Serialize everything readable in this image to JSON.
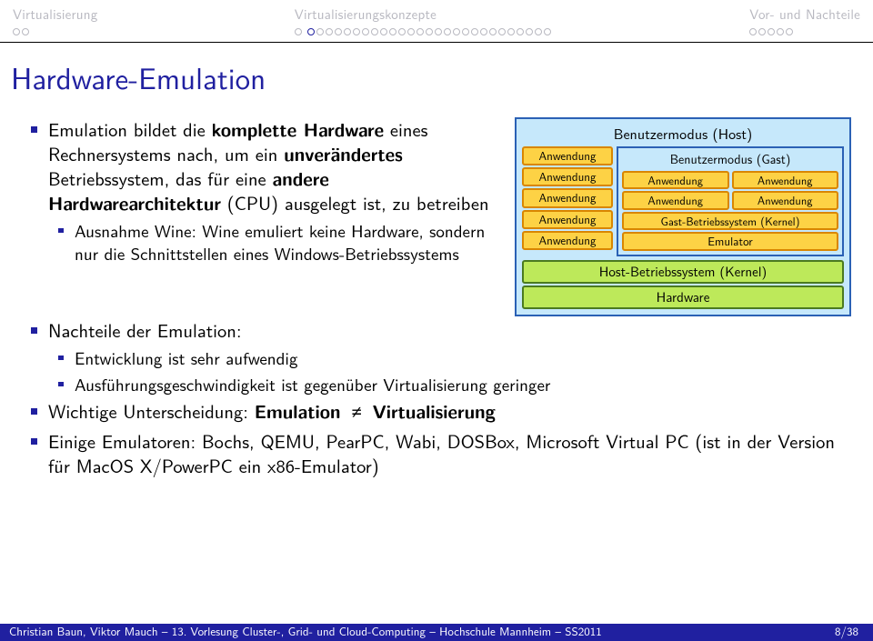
{
  "nav": {
    "sec1": {
      "label": "Virtualisierung",
      "dots": 2,
      "filled": -1
    },
    "sec2": {
      "label": "Virtualisierungskonzepte",
      "dots_groups": [
        1,
        27
      ],
      "active": 1
    },
    "sec3": {
      "label": "Vor- und Nachteile",
      "dots": 5,
      "filled": -1
    }
  },
  "title": "Hardware-Emulation",
  "bullets": {
    "b1a": "Emulation bildet die ",
    "b1b": "komplette Hardware",
    "b1c": " eines Rechnersystems nach, um ein ",
    "b1d": "unverändertes",
    "b1e": " Betriebssystem, das für eine ",
    "b1f": "andere Hardwarearchitektur",
    "b1g": " (CPU) ausgelegt ist, zu betreiben",
    "b1s1": "Ausnahme Wine: Wine emuliert keine Hardware, sondern nur die Schnittstellen eines Windows-Betriebssystems",
    "b2": "Nachteile der Emulation:",
    "b2s1": "Entwicklung ist sehr aufwendig",
    "b2s2": "Ausführungsgeschwindigkeit ist gegenüber Virtualisierung geringer",
    "b3a": "Wichtige Unterscheidung: ",
    "b3b": "Emulation",
    "b3c": "Virtualisierung",
    "b4": "Einige Emulatoren: Bochs, QEMU, PearPC, Wabi, DOSBox, Microsoft Virtual PC (ist in der Version für MacOS X/PowerPC ein x86-Emulator)"
  },
  "diagram": {
    "host_user_mode": "Benutzermodus (Host)",
    "anwendung": "Anwendung",
    "guest_user_mode": "Benutzermodus (Gast)",
    "guest_kernel": "Gast-Betriebssystem (Kernel)",
    "emulator": "Emulator",
    "host_kernel": "Host-Betriebssystem (Kernel)",
    "hardware": "Hardware",
    "host_apps_count": 5
  },
  "footer": {
    "left": "Christian Baun, Viktor Mauch – 13.",
    "mid": "Vorlesung Cluster-, Grid- und Cloud-Computing – Hochschule Mannheim – SS2011",
    "right": "8/38"
  },
  "colors": {
    "beamer_blue": "#2020a0",
    "nav_grey": "#b8b8c0"
  }
}
